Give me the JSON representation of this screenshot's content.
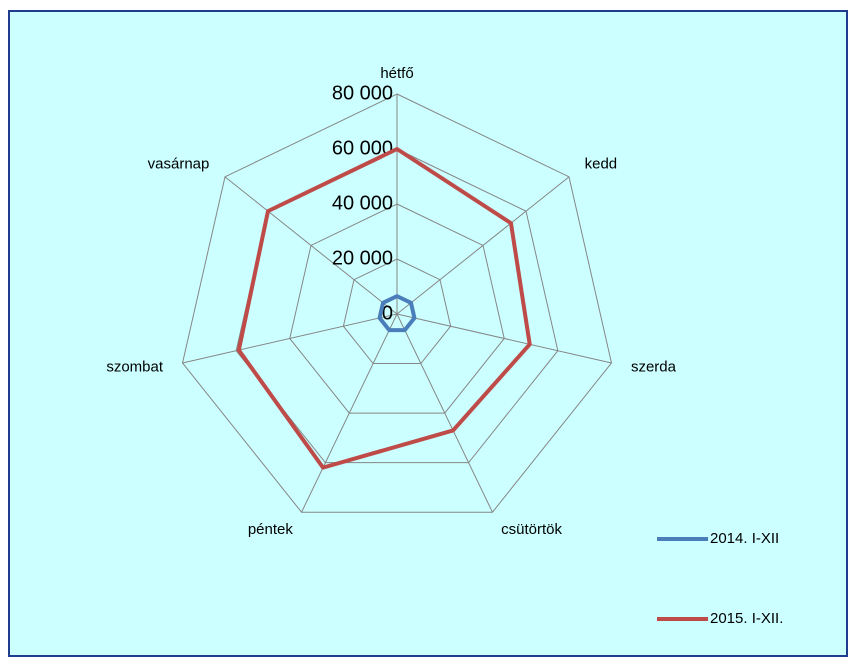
{
  "chart_data": {
    "type": "radar",
    "categories": [
      "hétfő",
      "kedd",
      "szerda",
      "csütörtök",
      "péntek",
      "szombat",
      "vasárnap"
    ],
    "series": [
      {
        "name": "2014. I-XII",
        "color": "#4a7ebb",
        "values": [
          6500,
          6500,
          6500,
          6500,
          6500,
          6500,
          6500
        ]
      },
      {
        "name": "2015. I-XII.",
        "color": "#be4b48",
        "values": [
          60000,
          53000,
          49500,
          47000,
          62000,
          59000,
          60000
        ]
      }
    ],
    "ylim": [
      0,
      80000
    ],
    "yticks": [
      0,
      {
        "value": 20000,
        "label": "20 000"
      },
      {
        "value": 40000,
        "label": "40 000"
      },
      {
        "value": 60000,
        "label": "60 000"
      },
      {
        "value": 80000,
        "label": "80 000"
      }
    ],
    "grid": true,
    "legend": "right"
  }
}
